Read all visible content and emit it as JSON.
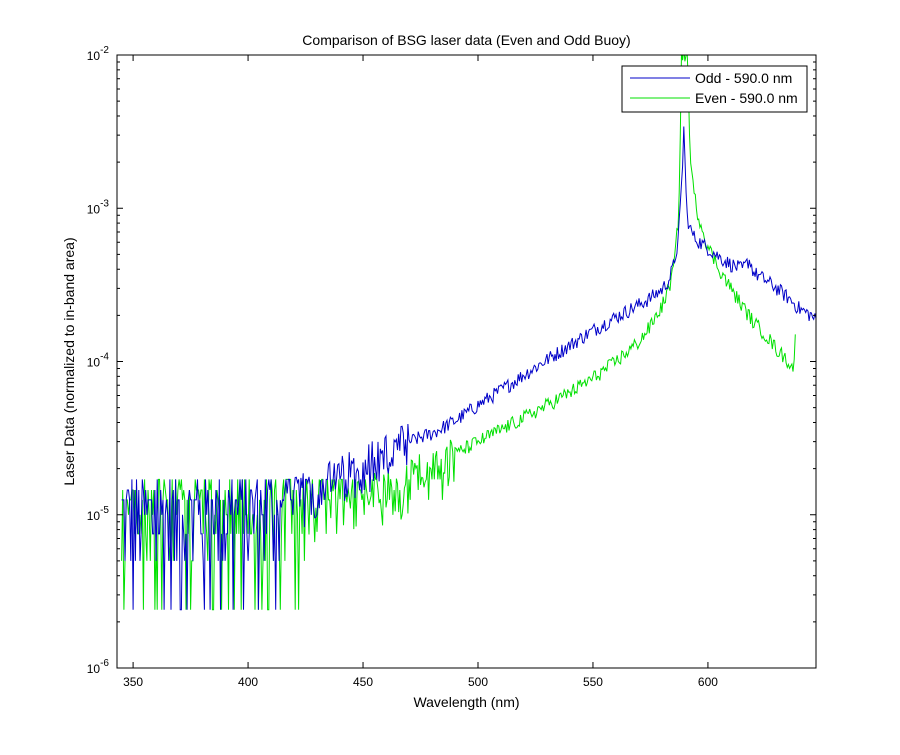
{
  "chart_data": {
    "type": "line",
    "title": "Comparison of BSG laser data (Even and Odd Buoy)",
    "xlabel": "Wavelength (nm)",
    "ylabel": "Laser Data (normalized to in-band area)",
    "xscale": "linear",
    "yscale": "log",
    "xlim": [
      343,
      647
    ],
    "ylim": [
      1e-06,
      0.01
    ],
    "x_ticks": [
      350,
      400,
      450,
      500,
      550,
      600
    ],
    "y_ticks": [
      {
        "value": 1e-06,
        "base": "10",
        "exp": "-6"
      },
      {
        "value": 1e-05,
        "base": "10",
        "exp": "-5"
      },
      {
        "value": 0.0001,
        "base": "10",
        "exp": "-4"
      },
      {
        "value": 0.001,
        "base": "10",
        "exp": "-3"
      },
      {
        "value": 0.01,
        "base": "10",
        "exp": "-2"
      }
    ],
    "grid": false,
    "legend_position": "top-right",
    "series": [
      {
        "name": "Odd - 590.0 nm",
        "color": "#0000c8",
        "noise_region": {
          "x_start": 345,
          "x_end": 470,
          "levels": [
            2.4e-06,
            5e-06,
            7.5e-06,
            1e-05,
            1.25e-05,
            1.45e-05,
            1.7e-05
          ]
        },
        "x": [
          345,
          360,
          380,
          400,
          420,
          440,
          455,
          470,
          480,
          490,
          500,
          510,
          520,
          530,
          540,
          550,
          560,
          570,
          575,
          580,
          583,
          585,
          587,
          588,
          589,
          589.5,
          590,
          590.5,
          591,
          592,
          594,
          597,
          600,
          605,
          610,
          615,
          618,
          620,
          625,
          630,
          635,
          640,
          645,
          647
        ],
        "y": [
          1e-05,
          1e-05,
          1e-05,
          1.1e-05,
          1.3e-05,
          1.8e-05,
          2.4e-05,
          3e-05,
          3.4e-05,
          4.1e-05,
          5.2e-05,
          6.5e-05,
          8.2e-05,
          0.000103,
          0.000128,
          0.00016,
          0.000195,
          0.000235,
          0.00026,
          0.000295,
          0.00034,
          0.00042,
          0.0006,
          0.001,
          0.002,
          0.0033,
          0.0022,
          0.0012,
          0.0009,
          0.00075,
          0.00065,
          0.00059,
          0.00055,
          0.00048,
          0.00043,
          0.0004,
          0.00046,
          0.00038,
          0.00034,
          0.0003,
          0.00026,
          0.00022,
          0.0002,
          0.000185
        ]
      },
      {
        "name": "Even - 590.0 nm",
        "color": "#00e000",
        "noise_region": {
          "x_start": 345,
          "x_end": 490,
          "levels": [
            2.4e-06,
            5e-06,
            7.5e-06,
            1e-05,
            1.25e-05,
            1.45e-05,
            1.7e-05
          ]
        },
        "x": [
          345,
          360,
          380,
          400,
          420,
          440,
          460,
          480,
          490,
          500,
          510,
          520,
          530,
          540,
          550,
          560,
          570,
          575,
          580,
          583,
          585,
          586,
          587,
          587.5,
          588,
          588.5,
          589,
          590,
          591,
          591.5,
          592,
          593,
          595,
          598,
          600,
          605,
          610,
          615,
          620,
          625,
          630,
          635,
          637,
          638
        ],
        "y": [
          8e-06,
          8e-06,
          8e-06,
          8e-06,
          9e-06,
          1.1e-05,
          1.5e-05,
          2e-05,
          2.5e-05,
          3e-05,
          3.6e-05,
          4.3e-05,
          5.2e-05,
          6.3e-05,
          7.8e-05,
          0.0001,
          0.000135,
          0.00017,
          0.00023,
          0.0003,
          0.0004,
          0.00055,
          0.0008,
          0.0014,
          0.003,
          0.01,
          0.01,
          0.01,
          0.01,
          0.006,
          0.003,
          0.0016,
          0.001,
          0.0007,
          0.00056,
          0.0004,
          0.0003,
          0.00023,
          0.00018,
          0.00015,
          0.00012,
          0.0001,
          9e-05,
          0.00014
        ]
      }
    ]
  }
}
